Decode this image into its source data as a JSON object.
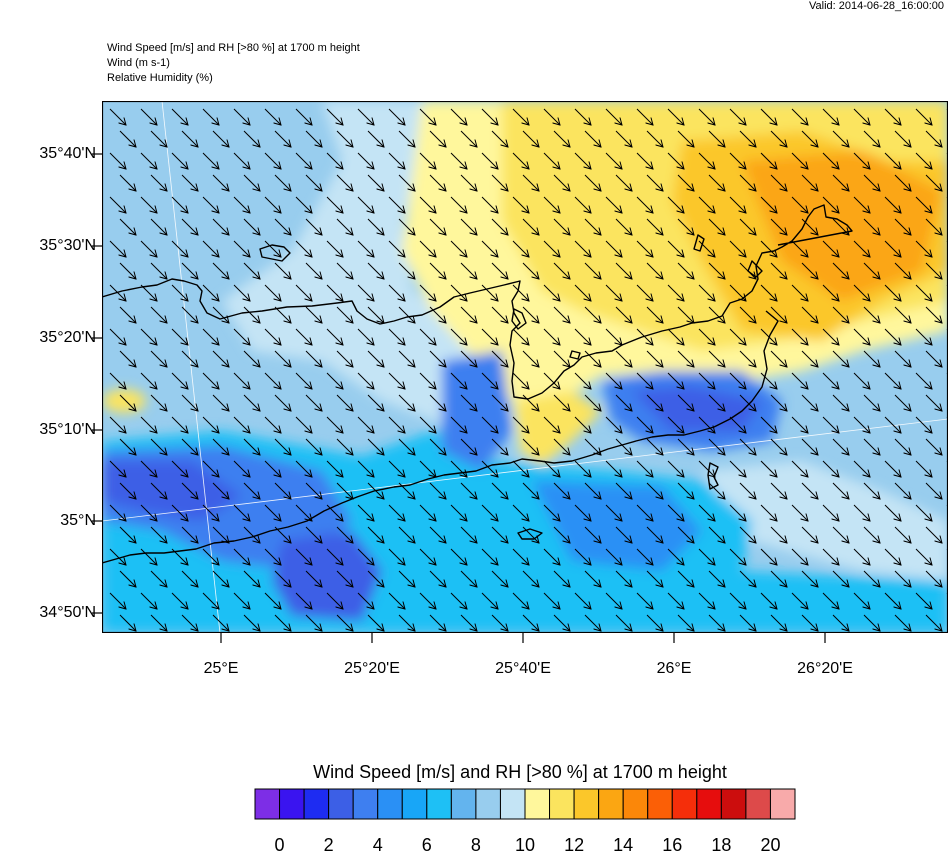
{
  "header": {
    "valid": "Valid: 2014-06-28_16:00:00",
    "line1": "Wind Speed [m/s] and RH [>80 %] at 1700 m height",
    "line2": "Wind   (m s-1)",
    "line3": "Relative Humidity   (%)"
  },
  "map": {
    "lat_labels": [
      "35°40'N",
      "35°30'N",
      "35°20'N",
      "35°10'N",
      "35°N",
      "34°50'N"
    ],
    "lon_labels": [
      "25°E",
      "25°20'E",
      "25°40'E",
      "26°E",
      "26°20'E"
    ],
    "wind_direction": "northwest to southeast",
    "colors": {
      "land_outline": "#000000",
      "frame": "#000000"
    }
  },
  "colorbar": {
    "title": "Wind Speed [m/s] and RH [>80 %] at 1700 m height",
    "tick_labels": [
      "0",
      "2",
      "4",
      "6",
      "8",
      "10",
      "12",
      "14",
      "16",
      "18",
      "20"
    ],
    "colors": [
      "#7d2ee6",
      "#3a14f0",
      "#1e2cf2",
      "#3c5fe6",
      "#3e7ff0",
      "#2a90f5",
      "#18a6f7",
      "#1ec0f5",
      "#63b4ee",
      "#98cdee",
      "#c4e4f5",
      "#fff79c",
      "#fbe45e",
      "#fbc72a",
      "#fba612",
      "#fb8709",
      "#fb5f06",
      "#f52e0a",
      "#e60d0d",
      "#cc0d0d",
      "#dd4a4a",
      "#f8aaaa"
    ]
  }
}
